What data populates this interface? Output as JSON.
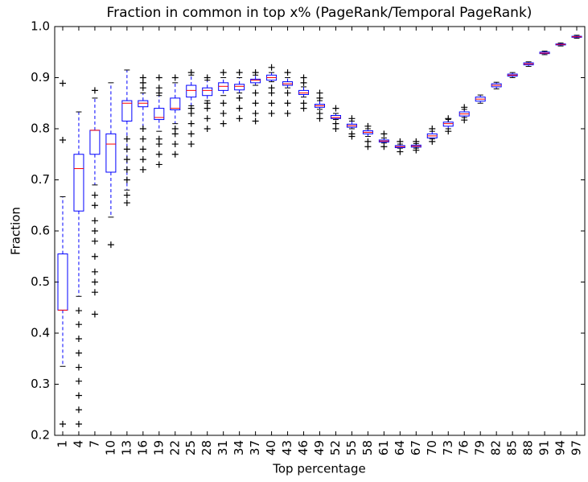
{
  "chart_data": {
    "type": "box",
    "title": "Fraction in common in top x% (PageRank/Temporal PageRank)",
    "xlabel": "Top percentage",
    "ylabel": "Fraction",
    "categories": [
      "1",
      "4",
      "7",
      "10",
      "13",
      "16",
      "19",
      "22",
      "25",
      "28",
      "31",
      "34",
      "37",
      "40",
      "43",
      "46",
      "49",
      "52",
      "55",
      "58",
      "61",
      "64",
      "67",
      "70",
      "73",
      "76",
      "79",
      "82",
      "85",
      "88",
      "91",
      "94",
      "97"
    ],
    "box_color": "#0000ff",
    "median_color": "#ff0000",
    "flier_color": "#000000",
    "ylim": [
      0.2,
      1.0
    ],
    "yticks": [
      0.2,
      0.3,
      0.4,
      0.5,
      0.6,
      0.7,
      0.8,
      0.9,
      {
        "value": 1.0,
        "label": "1.0"
      }
    ],
    "boxes": [
      {
        "whislo": 0.335,
        "q1": 0.445,
        "med": 0.445,
        "q3": 0.555,
        "whishi": 0.667,
        "fliers": [
          0.222,
          0.778,
          0.889
        ]
      },
      {
        "whislo": 0.472,
        "q1": 0.639,
        "med": 0.722,
        "q3": 0.75,
        "whishi": 0.833,
        "fliers": [
          0.222,
          0.25,
          0.278,
          0.306,
          0.333,
          0.361,
          0.389,
          0.417,
          0.444
        ]
      },
      {
        "whislo": 0.69,
        "q1": 0.75,
        "med": 0.797,
        "q3": 0.797,
        "whishi": 0.86,
        "fliers": [
          0.437,
          0.48,
          0.5,
          0.52,
          0.55,
          0.58,
          0.6,
          0.62,
          0.65,
          0.67,
          0.875
        ]
      },
      {
        "whislo": 0.627,
        "q1": 0.715,
        "med": 0.77,
        "q3": 0.79,
        "whishi": 0.89,
        "fliers": [
          0.573
        ]
      },
      {
        "whislo": 0.68,
        "q1": 0.815,
        "med": 0.85,
        "q3": 0.855,
        "whishi": 0.915,
        "fliers": [
          0.655,
          0.67,
          0.7,
          0.72,
          0.74,
          0.76,
          0.78
        ]
      },
      {
        "whislo": 0.8,
        "q1": 0.843,
        "med": 0.85,
        "q3": 0.855,
        "whishi": 0.87,
        "fliers": [
          0.72,
          0.74,
          0.76,
          0.78,
          0.8,
          0.88,
          0.89,
          0.9
        ]
      },
      {
        "whislo": 0.795,
        "q1": 0.818,
        "med": 0.822,
        "q3": 0.84,
        "whishi": 0.865,
        "fliers": [
          0.73,
          0.75,
          0.77,
          0.78,
          0.87,
          0.88,
          0.9
        ]
      },
      {
        "whislo": 0.81,
        "q1": 0.837,
        "med": 0.84,
        "q3": 0.86,
        "whishi": 0.89,
        "fliers": [
          0.75,
          0.77,
          0.79,
          0.8,
          0.9
        ]
      },
      {
        "whislo": 0.845,
        "q1": 0.862,
        "med": 0.875,
        "q3": 0.885,
        "whishi": 0.905,
        "fliers": [
          0.77,
          0.79,
          0.81,
          0.83,
          0.84,
          0.91
        ]
      },
      {
        "whislo": 0.855,
        "q1": 0.865,
        "med": 0.875,
        "q3": 0.88,
        "whishi": 0.895,
        "fliers": [
          0.8,
          0.82,
          0.84,
          0.85,
          0.9
        ]
      },
      {
        "whislo": 0.865,
        "q1": 0.875,
        "med": 0.883,
        "q3": 0.89,
        "whishi": 0.9,
        "fliers": [
          0.81,
          0.83,
          0.85,
          0.91
        ]
      },
      {
        "whislo": 0.87,
        "q1": 0.876,
        "med": 0.883,
        "q3": 0.887,
        "whishi": 0.9,
        "fliers": [
          0.82,
          0.84,
          0.86,
          0.91
        ]
      },
      {
        "whislo": 0.885,
        "q1": 0.89,
        "med": 0.895,
        "q3": 0.897,
        "whishi": 0.905,
        "fliers": [
          0.815,
          0.83,
          0.85,
          0.87,
          0.91
        ]
      },
      {
        "whislo": 0.892,
        "q1": 0.895,
        "med": 0.9,
        "q3": 0.905,
        "whishi": 0.91,
        "fliers": [
          0.83,
          0.85,
          0.87,
          0.88,
          0.92
        ]
      },
      {
        "whislo": 0.88,
        "q1": 0.885,
        "med": 0.888,
        "q3": 0.892,
        "whishi": 0.9,
        "fliers": [
          0.83,
          0.85,
          0.87,
          0.91
        ]
      },
      {
        "whislo": 0.862,
        "q1": 0.867,
        "med": 0.87,
        "q3": 0.875,
        "whishi": 0.882,
        "fliers": [
          0.84,
          0.85,
          0.89,
          0.9
        ]
      },
      {
        "whislo": 0.838,
        "q1": 0.842,
        "med": 0.845,
        "q3": 0.848,
        "whishi": 0.855,
        "fliers": [
          0.82,
          0.83,
          0.86,
          0.87
        ]
      },
      {
        "whislo": 0.818,
        "q1": 0.82,
        "med": 0.822,
        "q3": 0.826,
        "whishi": 0.83,
        "fliers": [
          0.8,
          0.81,
          0.84
        ]
      },
      {
        "whislo": 0.8,
        "q1": 0.803,
        "med": 0.806,
        "q3": 0.809,
        "whishi": 0.815,
        "fliers": [
          0.785,
          0.79,
          0.82
        ]
      },
      {
        "whislo": 0.785,
        "q1": 0.79,
        "med": 0.793,
        "q3": 0.796,
        "whishi": 0.8,
        "fliers": [
          0.765,
          0.775,
          0.805
        ]
      },
      {
        "whislo": 0.772,
        "q1": 0.774,
        "med": 0.776,
        "q3": 0.778,
        "whishi": 0.782,
        "fliers": [
          0.765,
          0.79
        ]
      },
      {
        "whislo": 0.762,
        "q1": 0.763,
        "med": 0.765,
        "q3": 0.767,
        "whishi": 0.77,
        "fliers": [
          0.755,
          0.775
        ]
      },
      {
        "whislo": 0.762,
        "q1": 0.764,
        "med": 0.766,
        "q3": 0.768,
        "whishi": 0.771,
        "fliers": [
          0.758,
          0.775
        ]
      },
      {
        "whislo": 0.78,
        "q1": 0.782,
        "med": 0.786,
        "q3": 0.79,
        "whishi": 0.795,
        "fliers": [
          0.775,
          0.8
        ]
      },
      {
        "whislo": 0.8,
        "q1": 0.805,
        "med": 0.81,
        "q3": 0.813,
        "whishi": 0.818,
        "fliers": [
          0.795,
          0.82
        ]
      },
      {
        "whislo": 0.822,
        "q1": 0.825,
        "med": 0.829,
        "q3": 0.833,
        "whishi": 0.838,
        "fliers": [
          0.817,
          0.842
        ]
      },
      {
        "whislo": 0.85,
        "q1": 0.854,
        "med": 0.858,
        "q3": 0.862,
        "whishi": 0.866,
        "fliers": []
      },
      {
        "whislo": 0.878,
        "q1": 0.882,
        "med": 0.885,
        "q3": 0.888,
        "whishi": 0.891,
        "fliers": []
      },
      {
        "whislo": 0.9,
        "q1": 0.903,
        "med": 0.905,
        "q3": 0.907,
        "whishi": 0.91,
        "fliers": []
      },
      {
        "whislo": 0.922,
        "q1": 0.925,
        "med": 0.927,
        "q3": 0.929,
        "whishi": 0.931,
        "fliers": []
      },
      {
        "whislo": 0.945,
        "q1": 0.947,
        "med": 0.948,
        "q3": 0.95,
        "whishi": 0.952,
        "fliers": []
      },
      {
        "whislo": 0.962,
        "q1": 0.964,
        "med": 0.965,
        "q3": 0.966,
        "whishi": 0.968,
        "fliers": []
      },
      {
        "whislo": 0.977,
        "q1": 0.979,
        "med": 0.98,
        "q3": 0.981,
        "whishi": 0.983,
        "fliers": []
      }
    ]
  }
}
